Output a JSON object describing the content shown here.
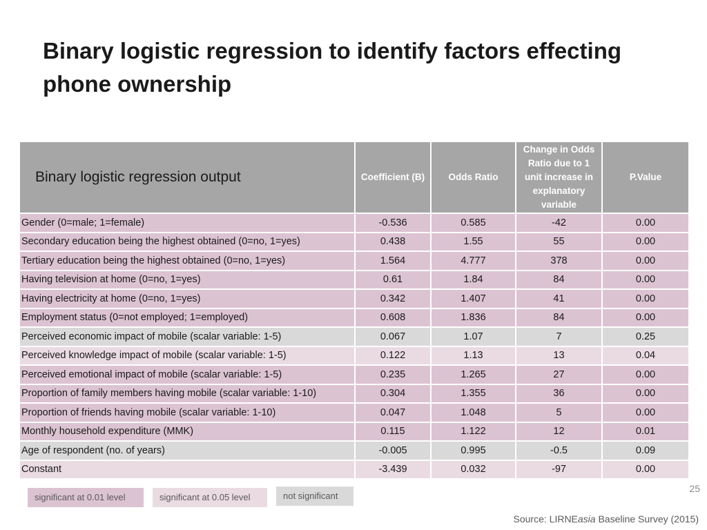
{
  "title": "Binary logistic regression to identify factors effecting phone ownership",
  "table": {
    "corner_label": "Binary logistic regression output",
    "columns": [
      "Coefficient (B)",
      "Odds Ratio",
      "Change in Odds Ratio due to 1 unit increase in explanatory variable",
      "P.Value"
    ],
    "rows": [
      {
        "label": "Gender (0=male; 1=female)",
        "b": "-0.536",
        "or": "0.585",
        "change": "-42",
        "p": "0.00",
        "sig": "sig01"
      },
      {
        "label": "Secondary education being the highest obtained (0=no, 1=yes)",
        "b": "0.438",
        "or": "1.55",
        "change": "55",
        "p": "0.00",
        "sig": "sig01"
      },
      {
        "label": "Tertiary education being the highest obtained (0=no, 1=yes)",
        "b": "1.564",
        "or": "4.777",
        "change": "378",
        "p": "0.00",
        "sig": "sig01"
      },
      {
        "label": "Having television at home (0=no, 1=yes)",
        "b": "0.61",
        "or": "1.84",
        "change": "84",
        "p": "0.00",
        "sig": "sig01"
      },
      {
        "label": "Having electricity at home (0=no, 1=yes)",
        "b": "0.342",
        "or": "1.407",
        "change": "41",
        "p": "0.00",
        "sig": "sig01"
      },
      {
        "label": "Employment status (0=not employed; 1=employed)",
        "b": "0.608",
        "or": "1.836",
        "change": "84",
        "p": "0.00",
        "sig": "sig01"
      },
      {
        "label": "Perceived economic impact of mobile (scalar variable: 1-5)",
        "b": "0.067",
        "or": "1.07",
        "change": "7",
        "p": "0.25",
        "sig": "notsig"
      },
      {
        "label": "Perceived knowledge  impact of mobile (scalar variable: 1-5)",
        "b": "0.122",
        "or": "1.13",
        "change": "13",
        "p": "0.04",
        "sig": "sig05"
      },
      {
        "label": "Perceived emotional  impact of mobile (scalar variable: 1-5)",
        "b": "0.235",
        "or": "1.265",
        "change": "27",
        "p": "0.00",
        "sig": "sig01"
      },
      {
        "label": "Proportion of family members having mobile (scalar variable: 1-10)",
        "b": "0.304",
        "or": "1.355",
        "change": "36",
        "p": "0.00",
        "sig": "sig01"
      },
      {
        "label": "Proportion of friends having mobile (scalar variable: 1-10)",
        "b": "0.047",
        "or": "1.048",
        "change": "5",
        "p": "0.00",
        "sig": "sig01"
      },
      {
        "label": "Monthly household expenditure (MMK)",
        "b": "0.115",
        "or": "1.122",
        "change": "12",
        "p": "0.01",
        "sig": "sig01"
      },
      {
        "label": "Age of respondent (no. of years)",
        "b": "-0.005",
        "or": "0.995",
        "change": "-0.5",
        "p": "0.09",
        "sig": "notsig"
      },
      {
        "label": "Constant",
        "b": "-3.439",
        "or": "0.032",
        "change": "-97",
        "p": "0.00",
        "sig": "sig05"
      }
    ]
  },
  "legend": {
    "sig01": "significant at 0.01 level",
    "sig05": "significant at 0.05 level",
    "notsig": "not significant"
  },
  "colors": {
    "sig01": "#dcc3d2",
    "sig05": "#eadbe3",
    "notsig": "#d9d9d9",
    "header": "#a6a6a6"
  },
  "page_number": "25",
  "source": {
    "prefix": "Source: LIRNE",
    "italic": "asia",
    "suffix": " Baseline Survey (2015)"
  }
}
